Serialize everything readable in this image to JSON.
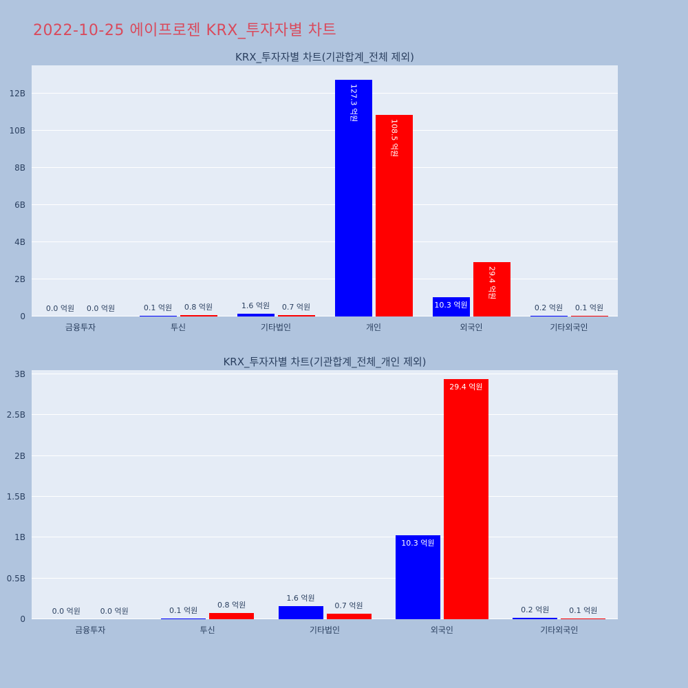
{
  "page": {
    "title": "2022-10-25 에이프로젠 KRX_투자자별 차트",
    "colors": {
      "background": "#b0c4de",
      "title": "#d94a5c",
      "plot_bg": "#e5ecf6",
      "axis_text": "#2a3f5f",
      "grid": "#ffffff",
      "inside_label": "#ffffff"
    }
  },
  "chart_data": [
    {
      "type": "bar",
      "title": "KRX_투자자별 차트(기관합계_전체 제외)",
      "unit": "억원",
      "grid": true,
      "legend": "none",
      "categories": [
        "금융투자",
        "투신",
        "기타법인",
        "개인",
        "외국인",
        "기타외국인"
      ],
      "ylim_b": [
        0,
        13.5
      ],
      "ytick_values_b": [
        0,
        2,
        4,
        6,
        8,
        10,
        12
      ],
      "ytick_labels": [
        "0",
        "2B",
        "4B",
        "6B",
        "8B",
        "10B",
        "12B"
      ],
      "series": [
        {
          "color": "#0000ff",
          "values_eokwon": [
            0.0,
            0.1,
            1.6,
            127.3,
            10.3,
            0.2
          ],
          "labels": [
            "0.0 억원",
            "0.1 억원",
            "1.6 억원",
            "127.3 억원",
            "10.3 억원",
            "0.2 억원"
          ],
          "label_pos": [
            "outside",
            "outside",
            "outside",
            "inside-rotated",
            "inside-horizontal",
            "outside"
          ]
        },
        {
          "color": "#ff0000",
          "values_eokwon": [
            0.0,
            0.8,
            0.7,
            108.5,
            29.4,
            0.1
          ],
          "labels": [
            "0.0 억원",
            "0.8 억원",
            "0.7 억원",
            "108.5 억원",
            "29.4 억원",
            "0.1 억원"
          ],
          "label_pos": [
            "outside",
            "outside",
            "outside",
            "inside-rotated",
            "inside-rotated",
            "outside"
          ]
        }
      ]
    },
    {
      "type": "bar",
      "title": "KRX_투자자별 차트(기관합계_전체_개인 제외)",
      "unit": "억원",
      "grid": true,
      "legend": "none",
      "categories": [
        "금융투자",
        "투신",
        "기타법인",
        "외국인",
        "기타외국인"
      ],
      "ylim_b": [
        0,
        3.05
      ],
      "ytick_values_b": [
        0,
        0.5,
        1,
        1.5,
        2,
        2.5,
        3
      ],
      "ytick_labels": [
        "0",
        "0.5B",
        "1B",
        "1.5B",
        "2B",
        "2.5B",
        "3B"
      ],
      "series": [
        {
          "color": "#0000ff",
          "values_eokwon": [
            0.0,
            0.1,
            1.6,
            10.3,
            0.2
          ],
          "labels": [
            "0.0 억원",
            "0.1 억원",
            "1.6 억원",
            "10.3 억원",
            "0.2 억원"
          ],
          "label_pos": [
            "outside",
            "outside",
            "outside",
            "inside-horizontal",
            "outside"
          ]
        },
        {
          "color": "#ff0000",
          "values_eokwon": [
            0.0,
            0.8,
            0.7,
            29.4,
            0.1
          ],
          "labels": [
            "0.0 억원",
            "0.8 억원",
            "0.7 억원",
            "29.4 억원",
            "0.1 억원"
          ],
          "label_pos": [
            "outside",
            "outside",
            "outside",
            "inside-horizontal",
            "outside"
          ]
        }
      ]
    }
  ]
}
